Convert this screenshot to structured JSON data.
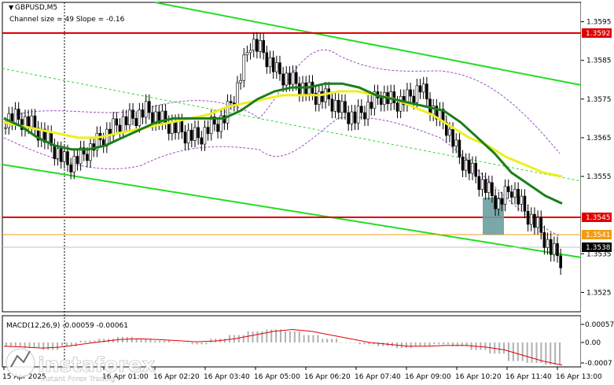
{
  "header": {
    "symbol_label": "GBPUSD,M5",
    "channel_info": "Channel size = 49 Slope = -0.16"
  },
  "price_levels": [
    {
      "value": 1.3592,
      "label": "1.3592",
      "color": "#e00000",
      "kind": "resistance"
    },
    {
      "value": 1.3545,
      "label": "1.3545",
      "color": "#e00000",
      "kind": "support"
    },
    {
      "value": 1.3541,
      "label": "1.3541",
      "color": "#f39c12",
      "kind": "marker"
    }
  ],
  "current_price": {
    "value": 1.3538,
    "label": "1.3538"
  },
  "macd_header": "MACD(12,26,9) -0.00059 -0.00061",
  "watermark": {
    "brand": "instaforex",
    "tagline": "Instant Forex Trading"
  },
  "colors": {
    "channel": "#22dd22",
    "ma_fast": "#1a7f1a",
    "ma_slow": "#eeee22",
    "bands": "#a050c0",
    "level_red": "#e00000",
    "level_orange": "#f39c12",
    "highlight": "#6c9ea0",
    "macd_hist": "#b0b0b0",
    "macd_signal": "#e00000"
  },
  "chart_data": {
    "type": "candlestick",
    "ylim": [
      1.352,
      1.36
    ],
    "y_ticks": [
      "1.3595",
      "1.3585",
      "1.3575",
      "1.3565",
      "1.3555",
      "1.3535",
      "1.3525"
    ],
    "x_ticks": [
      "15 Apr 2025",
      "16 Apr 01:00",
      "16 Apr 02:20",
      "16 Apr 03:40",
      "16 Apr 05:00",
      "16 Apr 06:20",
      "16 Apr 07:40",
      "16 Apr 09:00",
      "16 Apr 10:20",
      "16 Apr 11:40",
      "16 Apr 13:00"
    ],
    "close_series": [
      1.357,
      1.3569,
      1.3566,
      1.3562,
      1.3558,
      1.356,
      1.3563,
      1.3566,
      1.3569,
      1.357,
      1.3572,
      1.357,
      1.3568,
      1.3566,
      1.3565,
      1.3568,
      1.357,
      1.3578,
      1.359,
      1.3587,
      1.3582,
      1.358,
      1.3578,
      1.3576,
      1.3575,
      1.3572,
      1.357,
      1.3573,
      1.3576,
      1.3574,
      1.3575,
      1.3578,
      1.3572,
      1.3568,
      1.356,
      1.3556,
      1.3552,
      1.3548,
      1.3552,
      1.3546,
      1.3542,
      1.3536,
      1.3533,
      1.3537
    ],
    "ma_fast": [
      1.357,
      1.3568,
      1.3565,
      1.3563,
      1.3562,
      1.3562,
      1.3563,
      1.3565,
      1.3567,
      1.3569,
      1.357,
      1.357,
      1.357,
      1.357,
      1.3572,
      1.3575,
      1.3577,
      1.3578,
      1.3578,
      1.3579,
      1.3579,
      1.3578,
      1.3576,
      1.3575,
      1.3574,
      1.3573,
      1.3572,
      1.3569,
      1.3565,
      1.3561,
      1.3556,
      1.3553,
      1.355,
      1.3548
    ],
    "ma_slow": [
      1.3569,
      1.3568,
      1.3567,
      1.3566,
      1.3565,
      1.3565,
      1.3566,
      1.3567,
      1.3568,
      1.3569,
      1.357,
      1.3571,
      1.3573,
      1.3574,
      1.3575,
      1.3576,
      1.3576,
      1.3576,
      1.3577,
      1.3577,
      1.3576,
      1.3575,
      1.3573,
      1.3571,
      1.3568,
      1.3565,
      1.3563,
      1.356,
      1.3558,
      1.3556,
      1.3555
    ],
    "macd": {
      "y_ticks": [
        "0.00057",
        "0.00",
        "-0.0007"
      ],
      "hist": [
        -0.0001,
        -0.00015,
        -0.0002,
        -0.0001,
        5e-05,
        0.0001,
        0.00015,
        0.0001,
        5e-05,
        0.0,
        -5e-05,
        0.0001,
        0.0002,
        0.0003,
        0.00035,
        0.0003,
        0.0002,
        0.0001,
        0.0,
        -5e-05,
        -0.0001,
        -0.00015,
        -0.0001,
        -5e-05,
        -0.0001,
        -0.0002,
        -0.0003,
        -0.0005,
        -0.00055,
        -0.0006
      ],
      "signal": [
        -0.0001,
        -0.00012,
        -0.00015,
        -0.00012,
        -5e-05,
        2e-05,
        8e-05,
        0.0001,
        8e-05,
        5e-05,
        2e-05,
        4e-05,
        0.0001,
        0.0002,
        0.0003,
        0.00035,
        0.0003,
        0.0002,
        0.0001,
        0.0,
        -5e-05,
        -0.0001,
        -0.0001,
        -8e-05,
        -8e-05,
        -0.00012,
        -0.0002,
        -0.00035,
        -0.0005,
        -0.00061
      ]
    }
  }
}
